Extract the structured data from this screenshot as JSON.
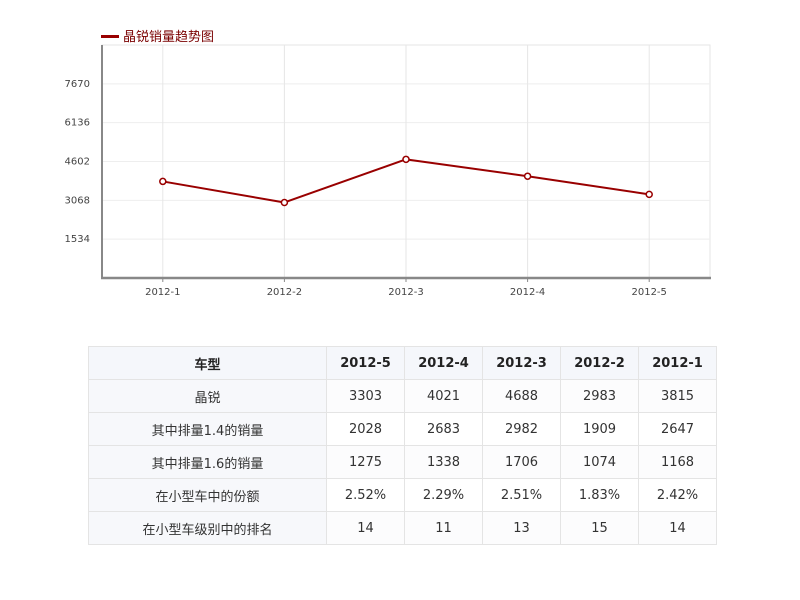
{
  "chart_data": {
    "type": "line",
    "title": "",
    "legend": "晶锐销量趋势图",
    "legend_placement": "top-left",
    "categories": [
      "2012-1",
      "2012-2",
      "2012-3",
      "2012-4",
      "2012-5"
    ],
    "series": [
      {
        "name": "晶锐销量趋势图",
        "values": [
          3815,
          2983,
          4688,
          4021,
          3303
        ]
      }
    ],
    "yticks": [
      1534,
      3068,
      4602,
      6136,
      7670
    ],
    "ylim": [
      0,
      9204
    ],
    "xlabel": "",
    "ylabel": "",
    "grid": true,
    "colors": {
      "line": "#990000",
      "grid": "#e6e6e6",
      "axis": "#888888"
    }
  },
  "table": {
    "header": [
      "车型",
      "2012-5",
      "2012-4",
      "2012-3",
      "2012-2",
      "2012-1"
    ],
    "rows": [
      [
        "晶锐",
        "3303",
        "4021",
        "4688",
        "2983",
        "3815"
      ],
      [
        "其中排量1.4的销量",
        "2028",
        "2683",
        "2982",
        "1909",
        "2647"
      ],
      [
        "其中排量1.6的销量",
        "1275",
        "1338",
        "1706",
        "1074",
        "1168"
      ],
      [
        "在小型车中的份额",
        "2.52%",
        "2.29%",
        "2.51%",
        "1.83%",
        "2.42%"
      ],
      [
        "在小型车级别中的排名",
        "14",
        "11",
        "13",
        "15",
        "14"
      ]
    ]
  }
}
